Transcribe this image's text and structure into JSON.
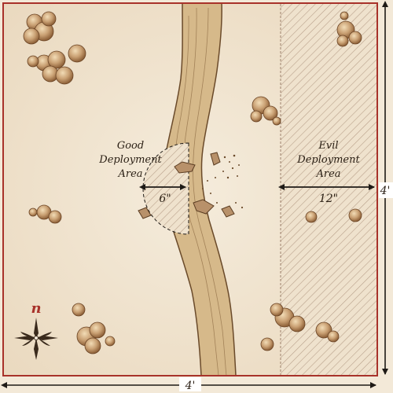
{
  "zones": {
    "good": {
      "label_lines": [
        "Good",
        "Deployment",
        "Area"
      ],
      "depth": "6\""
    },
    "evil": {
      "label_lines": [
        "Evil",
        "Deployment",
        "Area"
      ],
      "depth": "12\""
    }
  },
  "dimensions": {
    "width": "4'",
    "height": "4'"
  },
  "compass": {
    "letter": "n"
  },
  "colors": {
    "border": "#a8322a",
    "parchment": "#f3e9d8",
    "river": "#d6b98a",
    "river_edge": "#6a4a2a",
    "trees": "#b48358",
    "hatch": "#8a6a55"
  }
}
